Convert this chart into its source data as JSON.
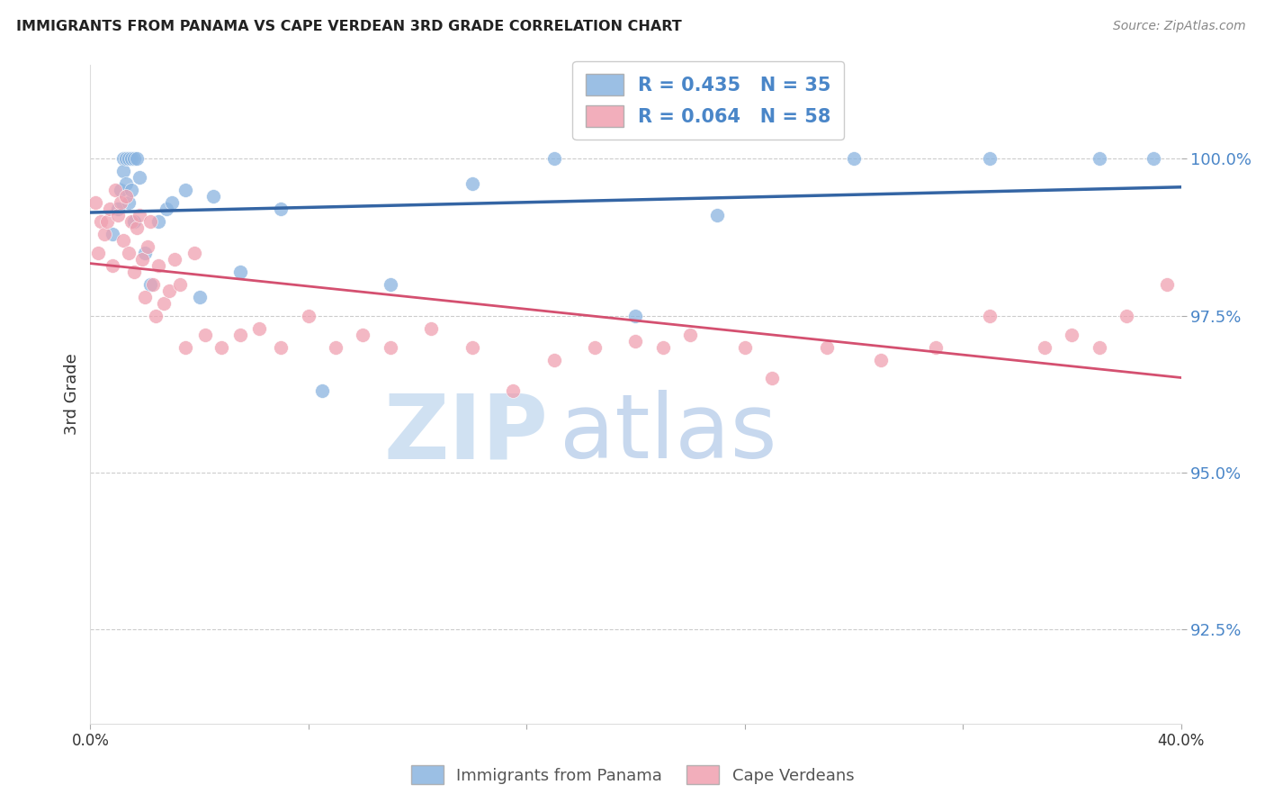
{
  "title": "IMMIGRANTS FROM PANAMA VS CAPE VERDEAN 3RD GRADE CORRELATION CHART",
  "source": "Source: ZipAtlas.com",
  "ylabel": "3rd Grade",
  "ytick_labels": [
    "92.5%",
    "95.0%",
    "97.5%",
    "100.0%"
  ],
  "ytick_values": [
    92.5,
    95.0,
    97.5,
    100.0
  ],
  "xlim": [
    0.0,
    40.0
  ],
  "ylim": [
    91.0,
    101.5
  ],
  "legend_blue_label": "R = 0.435   N = 35",
  "legend_pink_label": "R = 0.064   N = 58",
  "blue_color": "#8ab4e0",
  "pink_color": "#f0a0b0",
  "trendline_blue_color": "#3465a4",
  "trendline_pink_color": "#d45070",
  "watermark_zip": "ZIP",
  "watermark_atlas": "atlas",
  "watermark_color": "#ddeeff",
  "blue_R": 0.435,
  "blue_N": 35,
  "pink_R": 0.064,
  "pink_N": 58,
  "blue_scatter_x": [
    0.8,
    1.0,
    1.1,
    1.2,
    1.2,
    1.3,
    1.3,
    1.4,
    1.4,
    1.5,
    1.5,
    1.6,
    1.6,
    1.7,
    1.8,
    2.0,
    2.2,
    2.5,
    2.8,
    3.0,
    3.5,
    4.0,
    4.5,
    5.5,
    7.0,
    8.5,
    11.0,
    14.0,
    17.0,
    20.0,
    23.0,
    28.0,
    33.0,
    37.0,
    39.0
  ],
  "blue_scatter_y": [
    98.8,
    99.2,
    99.5,
    100.0,
    99.8,
    100.0,
    99.6,
    100.0,
    99.3,
    100.0,
    99.5,
    100.0,
    99.0,
    100.0,
    99.7,
    98.5,
    98.0,
    99.0,
    99.2,
    99.3,
    99.5,
    97.8,
    99.4,
    98.2,
    99.2,
    96.3,
    98.0,
    99.6,
    100.0,
    97.5,
    99.1,
    100.0,
    100.0,
    100.0,
    100.0
  ],
  "pink_scatter_x": [
    0.2,
    0.3,
    0.4,
    0.5,
    0.6,
    0.7,
    0.8,
    0.9,
    1.0,
    1.1,
    1.2,
    1.3,
    1.4,
    1.5,
    1.6,
    1.7,
    1.8,
    1.9,
    2.0,
    2.1,
    2.2,
    2.3,
    2.4,
    2.5,
    2.7,
    2.9,
    3.1,
    3.3,
    3.5,
    3.8,
    4.2,
    4.8,
    5.5,
    6.2,
    7.0,
    8.0,
    9.0,
    10.0,
    11.0,
    12.5,
    14.0,
    15.5,
    17.0,
    18.5,
    20.0,
    21.0,
    22.0,
    24.0,
    25.0,
    27.0,
    29.0,
    31.0,
    33.0,
    35.0,
    36.0,
    37.0,
    38.0,
    39.5
  ],
  "pink_scatter_y": [
    99.3,
    98.5,
    99.0,
    98.8,
    99.0,
    99.2,
    98.3,
    99.5,
    99.1,
    99.3,
    98.7,
    99.4,
    98.5,
    99.0,
    98.2,
    98.9,
    99.1,
    98.4,
    97.8,
    98.6,
    99.0,
    98.0,
    97.5,
    98.3,
    97.7,
    97.9,
    98.4,
    98.0,
    97.0,
    98.5,
    97.2,
    97.0,
    97.2,
    97.3,
    97.0,
    97.5,
    97.0,
    97.2,
    97.0,
    97.3,
    97.0,
    96.3,
    96.8,
    97.0,
    97.1,
    97.0,
    97.2,
    97.0,
    96.5,
    97.0,
    96.8,
    97.0,
    97.5,
    97.0,
    97.2,
    97.0,
    97.5,
    98.0
  ]
}
